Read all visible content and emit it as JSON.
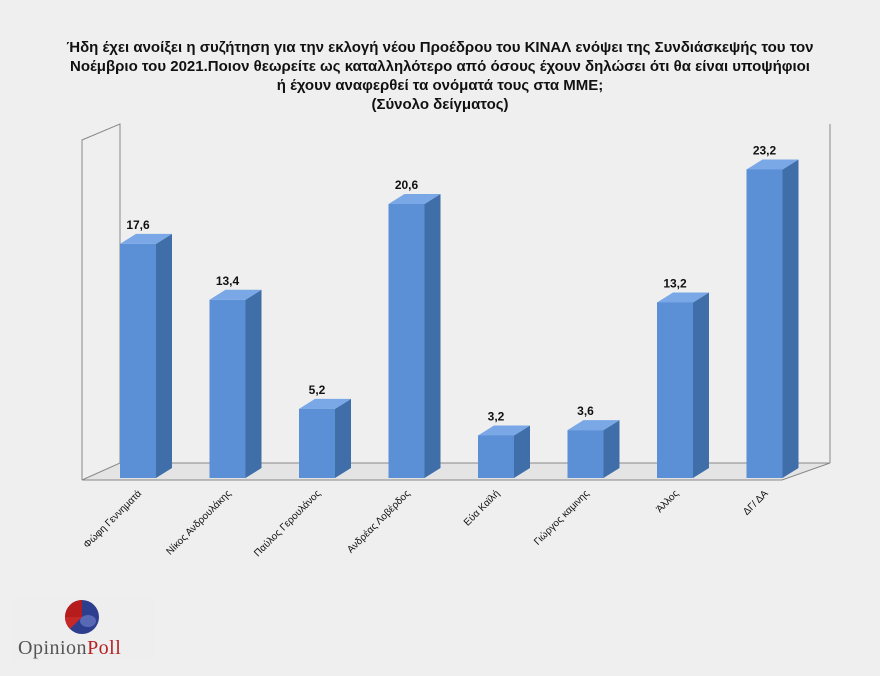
{
  "chart_data": {
    "type": "bar",
    "title_lines": [
      "Ήδη έχει ανοίξει η συζήτηση για την εκλογή νέου Προέδρου του ΚΙΝΑΛ ενόψει της Συνδιάσκεψής του τον",
      "Νοέμβριο του 2021.Ποιον θεωρείτε ως καταλληλότερο από όσους  έχουν δηλώσει ότι θα είναι υποψήφιοι",
      "ή έχουν αναφερθεί τα ονόματά τους  στα ΜΜΕ;",
      "(Σύνολο δείγματος)"
    ],
    "categories": [
      "Φώφη Γεννηματά",
      "Νίκος Ανδρουλάκης",
      "Παύλος Γερουλάνος",
      "Ανδρέας Λοβέρδος",
      "Εύα Καϊλή",
      "Γιώργος καμινης",
      "Άλλος",
      "ΔΓ/ ΔΑ"
    ],
    "values": [
      17.6,
      13.4,
      5.2,
      20.6,
      3.2,
      3.6,
      13.2,
      23.2
    ],
    "value_labels": [
      "17,6",
      "13,4",
      "5,2",
      "20,6",
      "3,2",
      "3,6",
      "13,2",
      "23,2"
    ],
    "ylim": [
      0,
      25
    ],
    "grid": false,
    "legend": false,
    "colors": {
      "bar_front": "#5b8fd6",
      "bar_side": "#3f6ea9",
      "bar_top": "#7aa7e6"
    }
  },
  "logo": {
    "part1": "Opinion",
    "part2": "Poll",
    "icon": "pie-logo-icon"
  }
}
